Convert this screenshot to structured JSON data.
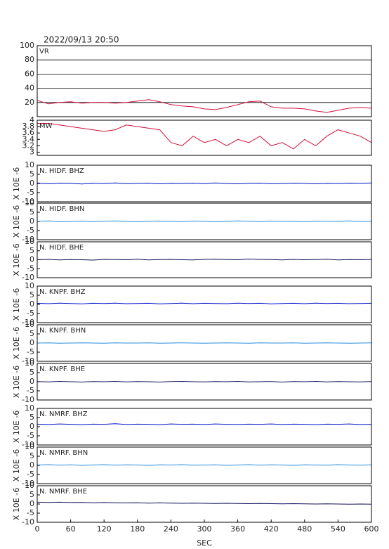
{
  "chart_data": [
    {
      "type": "line",
      "title": "2022/09/13 20:50",
      "xlim": [
        0,
        600
      ],
      "ylim": [
        0,
        100
      ],
      "yticks": [
        20,
        40,
        60,
        80,
        100
      ],
      "grid": true,
      "x": [
        0,
        20,
        40,
        60,
        80,
        100,
        120,
        140,
        160,
        180,
        200,
        220,
        240,
        260,
        280,
        300,
        320,
        340,
        360,
        380,
        400,
        420,
        440,
        460,
        480,
        500,
        520,
        540,
        560,
        580,
        600
      ],
      "series": [
        {
          "name": "VR",
          "color": "#d0103a",
          "values": [
            23,
            18,
            20,
            21,
            19,
            20,
            20,
            19,
            20,
            22,
            24,
            21,
            17,
            15,
            14,
            11,
            10,
            13,
            17,
            21,
            22,
            14,
            12,
            12,
            11,
            8,
            6,
            9,
            12,
            13,
            12
          ]
        }
      ]
    },
    {
      "type": "line",
      "xlim": [
        0,
        600
      ],
      "ylim": [
        2.9,
        4.0
      ],
      "yticks": [
        3.0,
        3.2,
        3.4,
        3.6,
        3.8,
        4.0
      ],
      "x": [
        0,
        20,
        40,
        60,
        80,
        100,
        120,
        140,
        160,
        180,
        200,
        220,
        240,
        260,
        280,
        300,
        320,
        340,
        360,
        380,
        400,
        420,
        440,
        460,
        480,
        500,
        520,
        540,
        560,
        580,
        600
      ],
      "series": [
        {
          "name": "MW",
          "color": "#d0103a",
          "values": [
            3.9,
            3.9,
            3.85,
            3.8,
            3.75,
            3.7,
            3.65,
            3.7,
            3.85,
            3.8,
            3.75,
            3.7,
            3.3,
            3.2,
            3.5,
            3.3,
            3.4,
            3.2,
            3.4,
            3.3,
            3.5,
            3.2,
            3.3,
            3.1,
            3.4,
            3.2,
            3.5,
            3.7,
            3.6,
            3.5,
            3.3
          ]
        }
      ]
    },
    {
      "type": "line",
      "ylabel": "X 10E -6",
      "xlim": [
        0,
        600
      ],
      "ylim": [
        -10,
        10
      ],
      "yticks": [
        -10,
        -5,
        0,
        5,
        10
      ],
      "x": [
        0,
        20,
        40,
        60,
        80,
        100,
        120,
        140,
        160,
        180,
        200,
        220,
        240,
        260,
        280,
        300,
        320,
        340,
        360,
        380,
        400,
        420,
        440,
        460,
        480,
        500,
        520,
        540,
        560,
        580,
        600
      ],
      "series": [
        {
          "name": "N. HIDF. BHZ",
          "color": "#0010c8",
          "values": [
            0.3,
            -0.2,
            0.2,
            0.1,
            -0.3,
            0.2,
            0.0,
            0.3,
            -0.1,
            0.1,
            0.2,
            -0.2,
            0.1,
            0.0,
            0.2,
            -0.1,
            0.3,
            0.0,
            -0.2,
            0.1,
            0.2,
            -0.1,
            0.0,
            0.2,
            0.1,
            -0.2,
            0.1,
            0.0,
            0.2,
            0.1,
            0.3
          ]
        }
      ]
    },
    {
      "type": "line",
      "ylabel": "X 10E -6",
      "xlim": [
        0,
        600
      ],
      "ylim": [
        -10,
        10
      ],
      "yticks": [
        -10,
        -5,
        0,
        5,
        10
      ],
      "x": [
        0,
        20,
        40,
        60,
        80,
        100,
        120,
        140,
        160,
        180,
        200,
        220,
        240,
        260,
        280,
        300,
        320,
        340,
        360,
        380,
        400,
        420,
        440,
        460,
        480,
        500,
        520,
        540,
        560,
        580,
        600
      ],
      "series": [
        {
          "name": "N. HIDF. BHN",
          "color": "#2a8ee0",
          "values": [
            0.1,
            0.3,
            -0.2,
            0.0,
            0.2,
            -0.1,
            0.1,
            0.3,
            0.0,
            -0.2,
            0.1,
            0.2,
            0.0,
            -0.1,
            0.2,
            0.1,
            -0.2,
            0.0,
            0.3,
            0.1,
            -0.1,
            0.2,
            0.0,
            0.1,
            -0.2,
            0.2,
            0.1,
            0.0,
            0.3,
            -0.1,
            0.1
          ]
        }
      ]
    },
    {
      "type": "line",
      "ylabel": "X 10E -6",
      "xlim": [
        0,
        600
      ],
      "ylim": [
        -10,
        10
      ],
      "yticks": [
        -10,
        -5,
        0,
        5,
        10
      ],
      "x": [
        0,
        20,
        40,
        60,
        80,
        100,
        120,
        140,
        160,
        180,
        200,
        220,
        240,
        260,
        280,
        300,
        320,
        340,
        360,
        380,
        400,
        420,
        440,
        460,
        480,
        500,
        520,
        540,
        560,
        580,
        600
      ],
      "series": [
        {
          "name": "N. HIDF. BHE",
          "color": "#10105a",
          "values": [
            0.0,
            0.2,
            -0.1,
            0.1,
            0.0,
            -0.2,
            0.2,
            0.1,
            0.0,
            0.3,
            -0.1,
            0.1,
            0.2,
            0.0,
            -0.1,
            0.2,
            0.3,
            0.1,
            0.0,
            0.4,
            0.2,
            0.1,
            -0.1,
            0.2,
            0.0,
            0.1,
            0.3,
            -0.1,
            0.1,
            0.0,
            0.2
          ]
        }
      ]
    },
    {
      "type": "line",
      "ylabel": "X 10E -6",
      "xlim": [
        0,
        600
      ],
      "ylim": [
        -10,
        10
      ],
      "yticks": [
        -10,
        -5,
        0,
        5,
        10
      ],
      "x": [
        0,
        20,
        40,
        60,
        80,
        100,
        120,
        140,
        160,
        180,
        200,
        220,
        240,
        260,
        280,
        300,
        320,
        340,
        360,
        380,
        400,
        420,
        440,
        460,
        480,
        500,
        520,
        540,
        560,
        580,
        600
      ],
      "series": [
        {
          "name": "N. KNPF. BHZ",
          "color": "#0010c8",
          "values": [
            0.6,
            0.4,
            0.7,
            0.5,
            0.3,
            0.6,
            0.5,
            0.7,
            0.4,
            0.5,
            0.6,
            0.3,
            0.5,
            0.7,
            0.4,
            0.6,
            0.5,
            0.4,
            0.7,
            0.5,
            0.6,
            0.3,
            0.5,
            0.6,
            0.4,
            0.7,
            0.5,
            0.6,
            0.4,
            0.5,
            0.6
          ]
        }
      ]
    },
    {
      "type": "line",
      "ylabel": "X 10E -6",
      "xlim": [
        0,
        600
      ],
      "ylim": [
        -10,
        10
      ],
      "yticks": [
        -10,
        -5,
        0,
        5,
        10
      ],
      "x": [
        0,
        20,
        40,
        60,
        80,
        100,
        120,
        140,
        160,
        180,
        200,
        220,
        240,
        260,
        280,
        300,
        320,
        340,
        360,
        380,
        400,
        420,
        440,
        460,
        480,
        500,
        520,
        540,
        560,
        580,
        600
      ],
      "series": [
        {
          "name": "N. KNPF. BHN",
          "color": "#2a8ee0",
          "values": [
            0.0,
            0.1,
            -0.1,
            0.0,
            0.1,
            0.0,
            -0.1,
            0.1,
            0.0,
            0.0,
            0.1,
            -0.1,
            0.0,
            0.1,
            0.0,
            -0.1,
            0.0,
            0.1,
            0.0,
            -0.1,
            0.1,
            0.0,
            0.0,
            0.1,
            -0.1,
            0.0,
            0.1,
            0.0,
            -0.1,
            0.0,
            0.1
          ]
        }
      ]
    },
    {
      "type": "line",
      "ylabel": "X 10E -6",
      "xlim": [
        0,
        600
      ],
      "ylim": [
        -10,
        10
      ],
      "yticks": [
        -10,
        -5,
        0,
        5,
        10
      ],
      "x": [
        0,
        20,
        40,
        60,
        80,
        100,
        120,
        140,
        160,
        180,
        200,
        220,
        240,
        260,
        280,
        300,
        320,
        340,
        360,
        380,
        400,
        420,
        440,
        460,
        480,
        500,
        520,
        540,
        560,
        580,
        600
      ],
      "series": [
        {
          "name": "N. KNPF. BHE",
          "color": "#10105a",
          "values": [
            0.1,
            -0.1,
            0.2,
            0.0,
            -0.2,
            0.1,
            0.0,
            0.2,
            -0.1,
            0.1,
            0.0,
            -0.2,
            0.1,
            0.2,
            0.0,
            -0.1,
            0.1,
            0.0,
            0.2,
            -0.1,
            0.0,
            0.1,
            -0.2,
            0.1,
            0.0,
            0.2,
            -0.1,
            0.1,
            0.0,
            -0.1,
            0.1
          ]
        }
      ]
    },
    {
      "type": "line",
      "ylabel": "X 10E -6",
      "xlim": [
        0,
        600
      ],
      "ylim": [
        -10,
        10
      ],
      "yticks": [
        -10,
        -5,
        0,
        5,
        10
      ],
      "x": [
        0,
        20,
        40,
        60,
        80,
        100,
        120,
        140,
        160,
        180,
        200,
        220,
        240,
        260,
        280,
        300,
        320,
        340,
        360,
        380,
        400,
        420,
        440,
        460,
        480,
        500,
        520,
        540,
        560,
        580,
        600
      ],
      "series": [
        {
          "name": "N. NMRF. BHZ",
          "color": "#0010c8",
          "values": [
            1.4,
            1.2,
            1.5,
            1.3,
            1.1,
            1.4,
            1.3,
            1.6,
            1.2,
            1.4,
            1.3,
            1.1,
            1.5,
            1.3,
            1.4,
            1.2,
            1.5,
            1.3,
            1.2,
            1.4,
            1.3,
            1.5,
            1.2,
            1.4,
            1.3,
            1.1,
            1.4,
            1.3,
            1.5,
            1.2,
            1.3
          ]
        }
      ]
    },
    {
      "type": "line",
      "ylabel": "X 10E -6",
      "xlim": [
        0,
        600
      ],
      "ylim": [
        -10,
        10
      ],
      "yticks": [
        -10,
        -5,
        0,
        5,
        10
      ],
      "x": [
        0,
        20,
        40,
        60,
        80,
        100,
        120,
        140,
        160,
        180,
        200,
        220,
        240,
        260,
        280,
        300,
        320,
        340,
        360,
        380,
        400,
        420,
        440,
        460,
        480,
        500,
        520,
        540,
        560,
        580,
        600
      ],
      "series": [
        {
          "name": "N. NMRF. BHN",
          "color": "#2a8ee0",
          "values": [
            0.2,
            0.4,
            0.1,
            0.3,
            0.0,
            0.2,
            0.4,
            0.1,
            0.3,
            0.2,
            0.0,
            0.3,
            0.2,
            0.4,
            0.1,
            0.2,
            0.3,
            0.0,
            0.2,
            0.4,
            0.1,
            0.3,
            0.2,
            0.0,
            0.3,
            0.2,
            0.1,
            0.4,
            0.2,
            0.1,
            0.3
          ]
        }
      ]
    },
    {
      "type": "line",
      "ylabel": "X 10E -6",
      "xlabel": "SEC",
      "xlim": [
        0,
        600
      ],
      "xticks": [
        0,
        60,
        120,
        180,
        240,
        300,
        360,
        420,
        480,
        540,
        600
      ],
      "ylim": [
        -10,
        10
      ],
      "yticks": [
        -10,
        -5,
        0,
        5,
        10
      ],
      "x": [
        0,
        20,
        40,
        60,
        80,
        100,
        120,
        140,
        160,
        180,
        200,
        220,
        240,
        260,
        280,
        300,
        320,
        340,
        360,
        380,
        400,
        420,
        440,
        460,
        480,
        500,
        520,
        540,
        560,
        580,
        600
      ],
      "series": [
        {
          "name": "N. NMRF. BHE",
          "color": "#10105a",
          "values": [
            1.0,
            0.9,
            1.0,
            0.8,
            0.9,
            0.7,
            0.8,
            0.7,
            0.6,
            0.7,
            0.5,
            0.6,
            0.5,
            0.4,
            0.5,
            0.4,
            0.3,
            0.4,
            0.3,
            0.2,
            0.3,
            0.2,
            0.1,
            0.2,
            0.1,
            0.0,
            0.1,
            0.0,
            -0.1,
            0.0,
            -0.1
          ]
        }
      ]
    }
  ]
}
